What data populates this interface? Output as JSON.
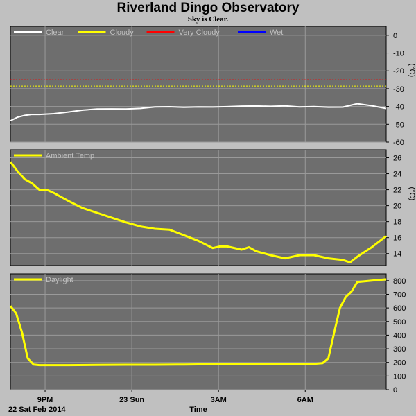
{
  "title": "Riverland Dingo Observatory",
  "subtitle": "Sky is Clear.",
  "colors": {
    "background": "#c0c0c0",
    "plot_bg": "#6e6e6e",
    "grid": "#9a9a9a",
    "clear": "#ffffff",
    "cloudy": "#ffff00",
    "very_cloudy": "#ff0000",
    "wet": "#0000ff",
    "temp": "#ffff00",
    "daylight": "#ffff00"
  },
  "chart_data": [
    {
      "type": "line",
      "title": "",
      "ylabel": "(°C)",
      "ylim": [
        -60,
        5
      ],
      "yticks": [
        0,
        -10,
        -20,
        -30,
        -40,
        -50,
        -60
      ],
      "grid": true,
      "legend": [
        {
          "name": "Clear",
          "color": "#ffffff"
        },
        {
          "name": "Cloudy",
          "color": "#ffff00"
        },
        {
          "name": "Very Cloudy",
          "color": "#ff0000"
        },
        {
          "name": "Wet",
          "color": "#0000ff"
        }
      ],
      "thresholds": [
        {
          "name": "Very Cloudy",
          "value": -25,
          "color": "#ff0000"
        },
        {
          "name": "Cloudy",
          "value": -28.5,
          "color": "#ffff00"
        }
      ],
      "series": [
        {
          "name": "Clear",
          "color": "#ffffff",
          "x": [
            0,
            0.25,
            0.5,
            0.75,
            1.0,
            1.5,
            2.0,
            2.5,
            3.0,
            3.5,
            4.0,
            4.5,
            5.0,
            5.5,
            6.0,
            6.5,
            7.0,
            7.5,
            8.0,
            8.5,
            9.0,
            9.5,
            10.0,
            10.5,
            11.0,
            11.5,
            12.0,
            12.5,
            13.0
          ],
          "values": [
            -48,
            -46.5,
            -45.5,
            -44.5,
            -44,
            -43.5,
            -43,
            -42.5,
            -42,
            -41.5,
            -41,
            -40.5,
            -40,
            -40.5,
            -41,
            -40.5,
            -40,
            -39.5,
            -39.5,
            -40,
            -40.5,
            -40,
            -40,
            -39.5,
            -40,
            -40.5,
            -39,
            -40,
            -41
          ]
        }
      ]
    },
    {
      "type": "line",
      "title": "",
      "ylabel": "(°C)",
      "ylim": [
        12.5,
        27
      ],
      "yticks": [
        26,
        24,
        22,
        20,
        18,
        16,
        14
      ],
      "grid": true,
      "legend": [
        {
          "name": "Ambient Temp",
          "color": "#ffff00"
        }
      ],
      "series": [
        {
          "name": "Ambient Temp",
          "color": "#ffff00",
          "x": [
            0,
            0.25,
            0.5,
            0.75,
            1.0,
            1.25,
            1.5,
            2.0,
            2.5,
            3.0,
            3.5,
            4.0,
            4.5,
            5.0,
            5.5,
            6.0,
            6.5,
            7.0,
            7.25,
            7.5,
            8.0,
            8.25,
            8.5,
            9.0,
            9.5,
            10.0,
            10.5,
            11.0,
            11.5,
            11.75,
            12.0,
            12.5,
            13.0
          ],
          "values": [
            25.5,
            24.3,
            23.3,
            22.8,
            22.0,
            22.0,
            21.6,
            20.6,
            19.7,
            19.1,
            18.5,
            17.9,
            17.4,
            17.1,
            17.0,
            16.3,
            15.6,
            14.7,
            14.9,
            14.9,
            14.5,
            14.8,
            14.3,
            13.8,
            13.4,
            13.8,
            13.8,
            13.4,
            13.2,
            12.9,
            13.6,
            14.8,
            16.2
          ]
        }
      ]
    },
    {
      "type": "line",
      "title": "",
      "ylabel": "",
      "ylim": [
        0,
        850
      ],
      "yticks": [
        800,
        700,
        600,
        500,
        400,
        300,
        200,
        100,
        0
      ],
      "grid": true,
      "legend": [
        {
          "name": "Daylight",
          "color": "#ffff00"
        }
      ],
      "series": [
        {
          "name": "Daylight",
          "color": "#ffff00",
          "x": [
            0,
            0.2,
            0.4,
            0.6,
            0.8,
            1.0,
            1.5,
            2.0,
            3.0,
            4.0,
            5.0,
            6.0,
            7.0,
            8.0,
            9.0,
            10.0,
            10.5,
            10.8,
            11.0,
            11.2,
            11.4,
            11.6,
            11.8,
            12.0,
            12.5,
            13.0
          ],
          "values": [
            615,
            560,
            420,
            230,
            185,
            180,
            180,
            180,
            182,
            183,
            183,
            185,
            187,
            188,
            190,
            190,
            190,
            195,
            230,
            420,
            600,
            680,
            720,
            790,
            800,
            810
          ]
        }
      ]
    }
  ],
  "x_axis": {
    "start_hour": 19.8,
    "span_hours": 13.0,
    "ticks": [
      {
        "label": "9PM",
        "hours": 1.2
      },
      {
        "label": "23 Sun",
        "hours": 4.2
      },
      {
        "label": "3AM",
        "hours": 7.2
      },
      {
        "label": "6AM",
        "hours": 10.2
      }
    ],
    "start_label": "22 Sat Feb 2014",
    "xlabel": "Time"
  }
}
